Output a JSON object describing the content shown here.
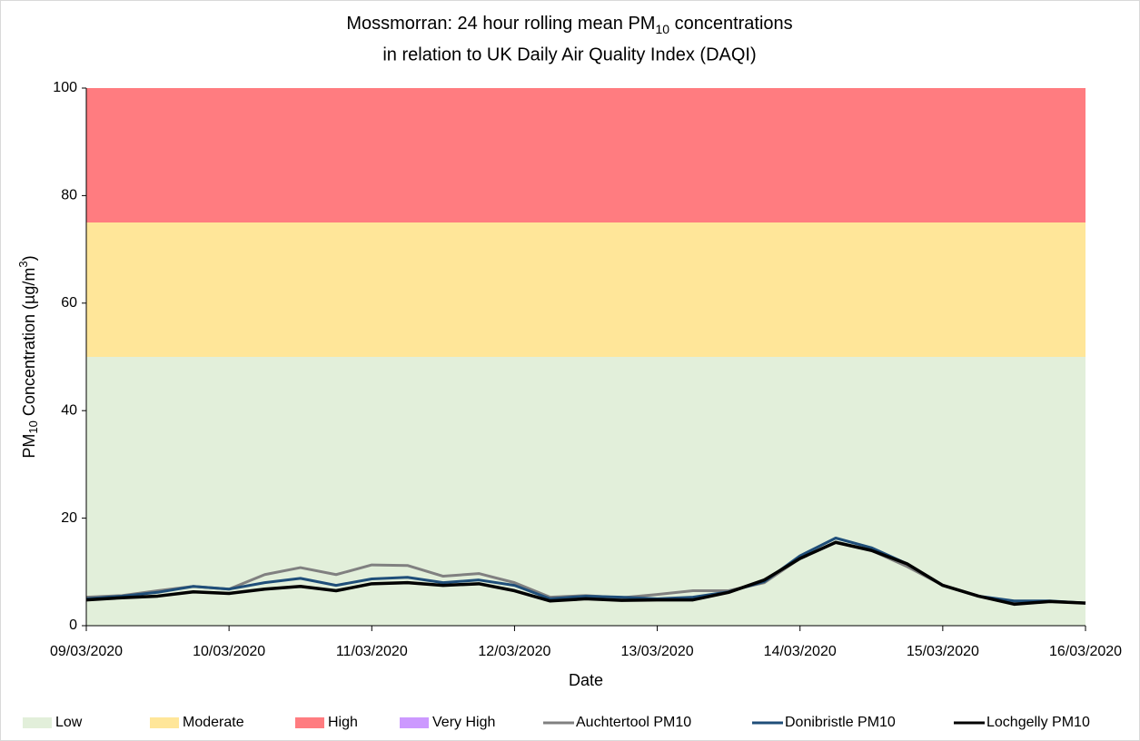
{
  "chart_data": {
    "type": "line",
    "title": {
      "line1": [
        "Mossmorran: 24 hour rolling mean PM",
        "10",
        " concentrations"
      ],
      "line2": "in relation to UK Daily Air Quality Index (DAQI)"
    },
    "x_label": "Date",
    "y_label": [
      "PM",
      "10",
      " Concentration (µg/m",
      "3",
      ")"
    ],
    "xlim": [
      0,
      7
    ],
    "xticks": [
      {
        "value": 0,
        "label": "09/03/2020"
      },
      {
        "value": 1,
        "label": "10/03/2020"
      },
      {
        "value": 2,
        "label": "11/03/2020"
      },
      {
        "value": 3,
        "label": "12/03/2020"
      },
      {
        "value": 4,
        "label": "13/03/2020"
      },
      {
        "value": 5,
        "label": "14/03/2020"
      },
      {
        "value": 6,
        "label": "15/03/2020"
      },
      {
        "value": 7,
        "label": "16/03/2020"
      }
    ],
    "ylim": [
      0,
      100
    ],
    "yticks": [
      0,
      20,
      40,
      60,
      80,
      100
    ],
    "bands": [
      {
        "name": "Low",
        "color": "#e2efda",
        "from": 0,
        "to": 50
      },
      {
        "name": "Moderate",
        "color": "#ffe699",
        "from": 50,
        "to": 75
      },
      {
        "name": "High",
        "color": "#ff7c80",
        "from": 75,
        "to": 100
      },
      {
        "name": "Very High",
        "color": "#cc99ff",
        "from": 100
      }
    ],
    "x": [
      0,
      0.25,
      0.5,
      0.75,
      1,
      1.25,
      1.5,
      1.75,
      2,
      2.25,
      2.5,
      2.75,
      3,
      3.25,
      3.5,
      3.75,
      4,
      4.25,
      4.5,
      4.75,
      5,
      5.25,
      5.5,
      5.75,
      6,
      6.25,
      6.5,
      6.75,
      7
    ],
    "series": [
      {
        "name": "Auchtertool PM10",
        "color": "#808080",
        "values": [
          5.3,
          5.6,
          6.5,
          7.3,
          6.8,
          9.5,
          10.8,
          9.5,
          11.3,
          11.2,
          9.2,
          9.7,
          8.0,
          5.3,
          5.6,
          5.2,
          5.8,
          6.5,
          6.5,
          8.0,
          12.5,
          15.5,
          14.0,
          11.0,
          7.5,
          5.5,
          4.3,
          4.5,
          4.2
        ]
      },
      {
        "name": "Donibristle PM10",
        "color": "#1f4e79",
        "values": [
          5.0,
          5.5,
          6.2,
          7.3,
          6.8,
          8.0,
          8.8,
          7.5,
          8.7,
          9.0,
          8.0,
          8.5,
          7.5,
          5.0,
          5.5,
          5.3,
          5.0,
          5.3,
          6.3,
          8.2,
          13.0,
          16.3,
          14.5,
          11.5,
          7.5,
          5.5,
          4.6,
          4.6,
          4.2
        ]
      },
      {
        "name": "Lochgelly PM10",
        "color": "#000000",
        "values": [
          4.8,
          5.2,
          5.5,
          6.3,
          6.0,
          6.8,
          7.3,
          6.5,
          7.8,
          8.0,
          7.5,
          7.8,
          6.5,
          4.6,
          5.0,
          4.7,
          4.8,
          4.8,
          6.2,
          8.5,
          12.5,
          15.5,
          14.0,
          11.5,
          7.5,
          5.5,
          4.0,
          4.5,
          4.2
        ]
      }
    ]
  }
}
